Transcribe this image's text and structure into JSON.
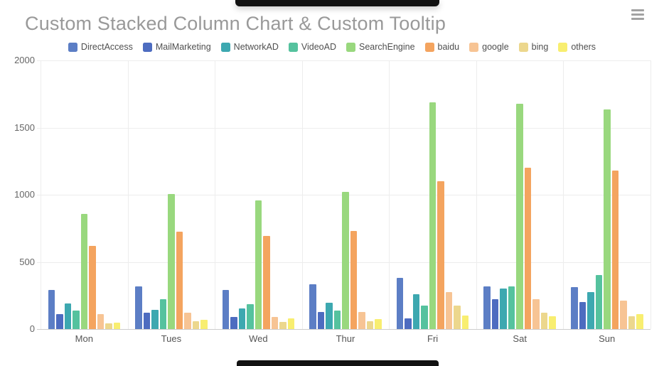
{
  "header": {
    "title": "Custom Stacked Column Chart & Custom Tooltip",
    "menu_icon": "hamburger-menu-icon"
  },
  "chart_data": {
    "type": "bar",
    "title": "Custom Stacked Column Chart & Custom Tooltip",
    "legend_position": "top",
    "grid": true,
    "xlabel": "",
    "ylabel": "",
    "ylim": [
      0,
      2000
    ],
    "yticks": [
      0,
      500,
      1000,
      1500,
      2000
    ],
    "categories": [
      "Mon",
      "Tues",
      "Wed",
      "Thur",
      "Fri",
      "Sat",
      "Sun"
    ],
    "series": [
      {
        "name": "DirectAccess",
        "color": "#5C7EC5",
        "values": [
          290,
          320,
          290,
          335,
          380,
          320,
          310
        ]
      },
      {
        "name": "MailMarketing",
        "color": "#4D6CC0",
        "values": [
          110,
          120,
          90,
          125,
          80,
          220,
          200
        ]
      },
      {
        "name": "NetworkAD",
        "color": "#3DA8B0",
        "values": [
          190,
          145,
          155,
          195,
          260,
          300,
          275
        ]
      },
      {
        "name": "VideoAD",
        "color": "#55C29E",
        "values": [
          140,
          220,
          185,
          140,
          175,
          320,
          400
        ]
      },
      {
        "name": "SearchEngine",
        "color": "#99D87E",
        "values": [
          860,
          1005,
          960,
          1020,
          1690,
          1680,
          1635
        ]
      },
      {
        "name": "baidu",
        "color": "#F4A45F",
        "values": [
          620,
          725,
          695,
          730,
          1100,
          1200,
          1180
        ]
      },
      {
        "name": "google",
        "color": "#F7C494",
        "values": [
          110,
          120,
          90,
          125,
          275,
          220,
          210
        ]
      },
      {
        "name": "bing",
        "color": "#ECD78D",
        "values": [
          45,
          60,
          55,
          60,
          175,
          120,
          95
        ]
      },
      {
        "name": "others",
        "color": "#F8EE70",
        "values": [
          50,
          70,
          80,
          75,
          100,
          95,
          110
        ]
      }
    ]
  }
}
